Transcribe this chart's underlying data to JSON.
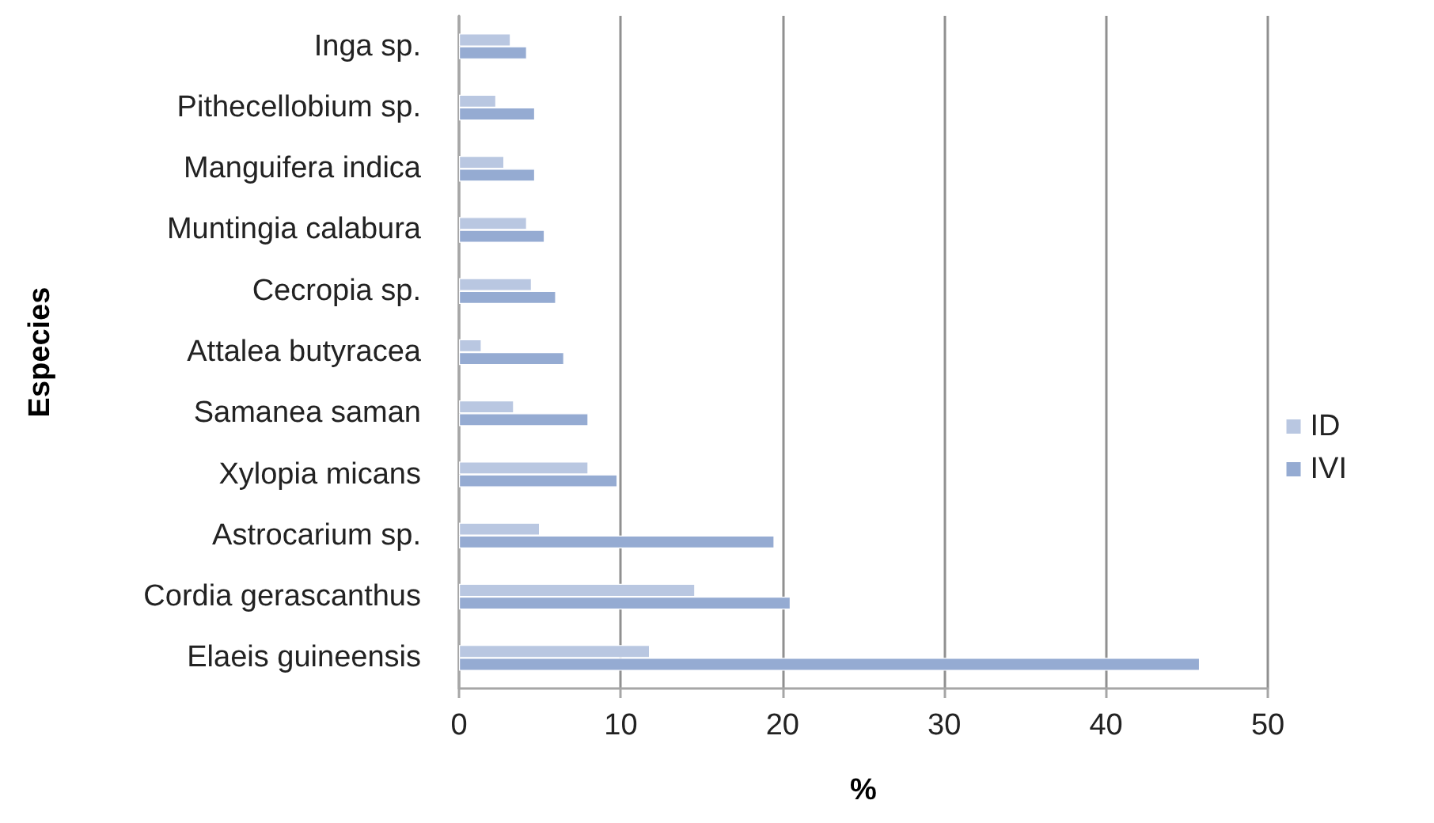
{
  "chart_data": {
    "type": "bar",
    "orientation": "horizontal",
    "xlabel": "%",
    "ylabel": "Especies",
    "categories": [
      "Inga sp.",
      "Pithecellobium sp.",
      "Manguifera indica",
      "Muntingia calabura",
      "Cecropia sp.",
      "Attalea butyracea",
      "Samanea saman",
      "Xylopia micans",
      "Astrocarium sp.",
      "Cordia gerascanthus",
      "Elaeis guineensis"
    ],
    "series": [
      {
        "name": "ID",
        "color": "#b9c7e1",
        "values": [
          3.2,
          2.3,
          2.8,
          4.2,
          4.5,
          1.4,
          3.4,
          8.0,
          5.0,
          14.6,
          11.8
        ]
      },
      {
        "name": "IVI",
        "color": "#95abd2",
        "values": [
          4.2,
          4.7,
          4.7,
          5.3,
          6.0,
          6.5,
          8.0,
          9.8,
          19.5,
          20.5,
          45.8
        ]
      }
    ],
    "xlim": [
      0,
      50
    ],
    "xticks": [
      0,
      10,
      20,
      30,
      40,
      50
    ],
    "grid": "x",
    "legend": "right"
  }
}
